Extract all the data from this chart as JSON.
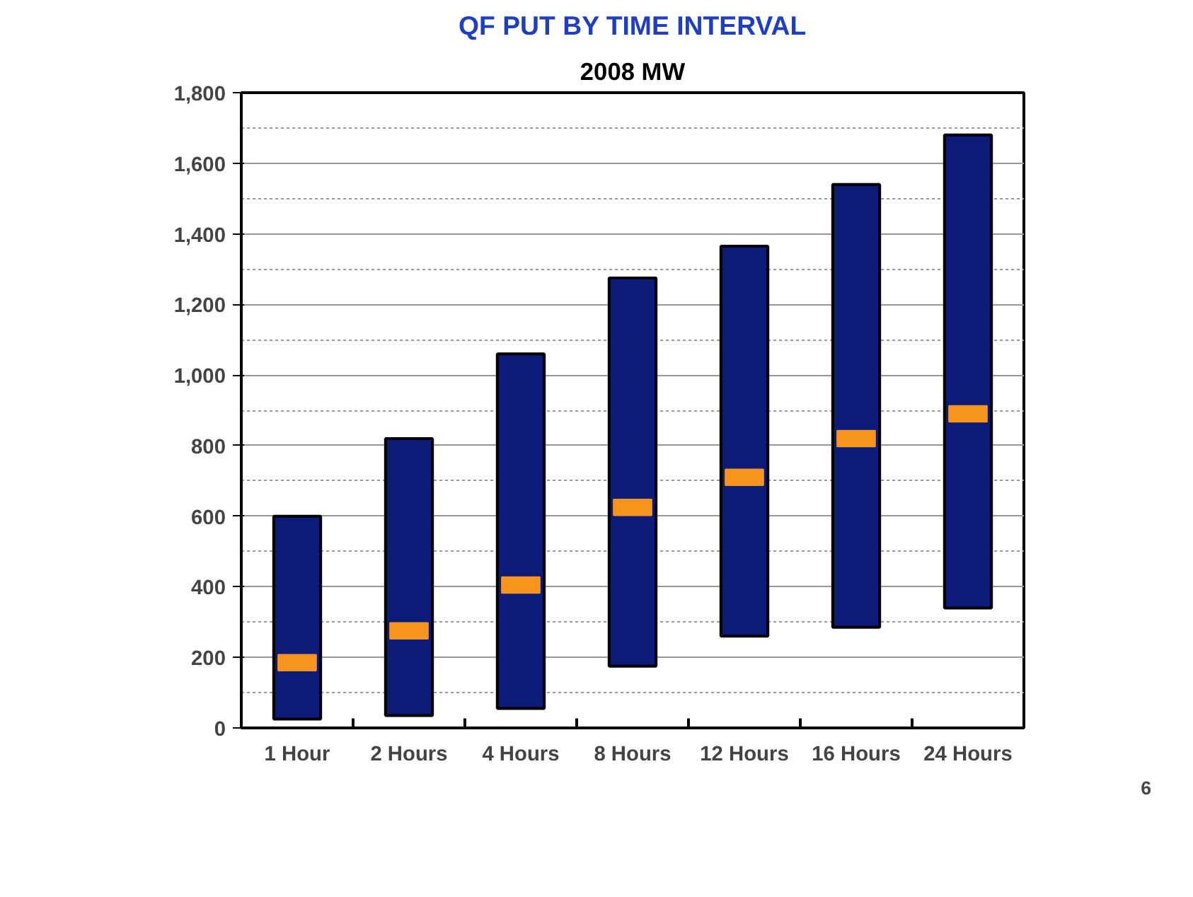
{
  "chart_data": {
    "type": "bar",
    "title": "QF PUT BY TIME INTERVAL",
    "subtitle": "2008 MW",
    "categories": [
      "1 Hour",
      "2 Hours",
      "4 Hours",
      "8 Hours",
      "12 Hours",
      "16 Hours",
      "24 Hours"
    ],
    "series": [
      {
        "type": "bar",
        "color": "#0c1a78",
        "base": [
          25,
          35,
          55,
          175,
          260,
          285,
          340
        ],
        "values": [
          575,
          785,
          1005,
          1100,
          1105,
          1255,
          1340
        ]
      },
      {
        "type": "scatter",
        "color": "#f7941d",
        "marker": "square",
        "values": [
          185,
          275,
          405,
          625,
          710,
          820,
          890
        ]
      }
    ],
    "ylim": [
      0,
      1800
    ],
    "yticks": [
      0,
      200,
      400,
      600,
      800,
      {
        "value": 1000,
        "label": "1,000"
      },
      {
        "value": 1200,
        "label": "1,200"
      },
      {
        "value": 1400,
        "label": "1,400"
      },
      {
        "value": 1600,
        "label": "1,600"
      },
      {
        "value": 1800,
        "label": "1,800"
      }
    ],
    "grid": "y",
    "annotations": [
      "6"
    ]
  }
}
